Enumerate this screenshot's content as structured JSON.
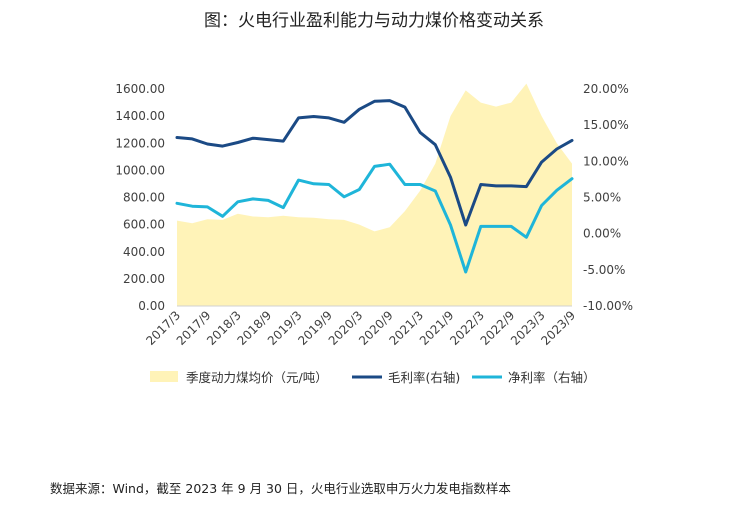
{
  "chart_data": {
    "type": "line",
    "title": "图：火电行业盈利能力与动力煤价格变动关系",
    "categories": [
      "2017/3",
      "2017/6",
      "2017/9",
      "2017/12",
      "2018/3",
      "2018/6",
      "2018/9",
      "2018/12",
      "2019/3",
      "2019/6",
      "2019/9",
      "2019/12",
      "2020/3",
      "2020/6",
      "2020/9",
      "2020/12",
      "2021/3",
      "2021/6",
      "2021/9",
      "2021/12",
      "2022/3",
      "2022/6",
      "2022/9",
      "2022/12",
      "2023/3",
      "2023/6",
      "2023/9"
    ],
    "xtick_labels": [
      "2017/3",
      "2017/9",
      "2018/3",
      "2018/9",
      "2019/3",
      "2019/9",
      "2020/3",
      "2020/9",
      "2021/3",
      "2021/9",
      "2022/3",
      "2022/9",
      "2023/3",
      "2023/9"
    ],
    "ylim_left": [
      0,
      1600
    ],
    "ylim_right": [
      -10,
      20
    ],
    "yticks_left": [
      "0.00",
      "200.00",
      "400.00",
      "600.00",
      "800.00",
      "1000.00",
      "1200.00",
      "1400.00",
      "1600.00"
    ],
    "yticks_right": [
      "-10.00%",
      "-5.00%",
      "0.00%",
      "5.00%",
      "10.00%",
      "15.00%",
      "20.00%"
    ],
    "series": [
      {
        "name": "季度动力煤均价（元/吨）",
        "kind": "area",
        "axis": "left",
        "color": "#FFF3B8",
        "values": [
          630,
          610,
          640,
          635,
          680,
          660,
          655,
          665,
          655,
          650,
          640,
          635,
          600,
          550,
          580,
          700,
          850,
          1050,
          1400,
          1590,
          1500,
          1470,
          1500,
          1640,
          1400,
          1200,
          1050
        ]
      },
      {
        "name": "毛利率(右轴)",
        "kind": "line",
        "axis": "right",
        "color": "#1B4A85",
        "values": [
          13.3,
          13.1,
          12.4,
          12.1,
          12.6,
          13.2,
          13.0,
          12.8,
          16.0,
          16.2,
          16.0,
          15.4,
          17.2,
          18.3,
          18.4,
          17.5,
          14.0,
          12.3,
          7.8,
          1.2,
          6.8,
          6.6,
          6.6,
          6.5,
          9.9,
          11.7,
          12.9
        ]
      },
      {
        "name": "净利率（右轴）",
        "kind": "line",
        "axis": "right",
        "color": "#1FB5D9",
        "values": [
          4.2,
          3.8,
          3.7,
          2.4,
          4.4,
          4.8,
          4.6,
          3.6,
          7.4,
          6.9,
          6.8,
          5.1,
          6.1,
          9.3,
          9.6,
          6.8,
          6.8,
          5.9,
          1.2,
          -5.3,
          1.0,
          1.0,
          1.0,
          -0.5,
          3.9,
          6.0,
          7.6
        ]
      }
    ],
    "legend": "bottom",
    "grid": false
  },
  "source": "数据来源：Wind，截至 2023 年 9 月 30 日，火电行业选取申万火力发电指数样本"
}
